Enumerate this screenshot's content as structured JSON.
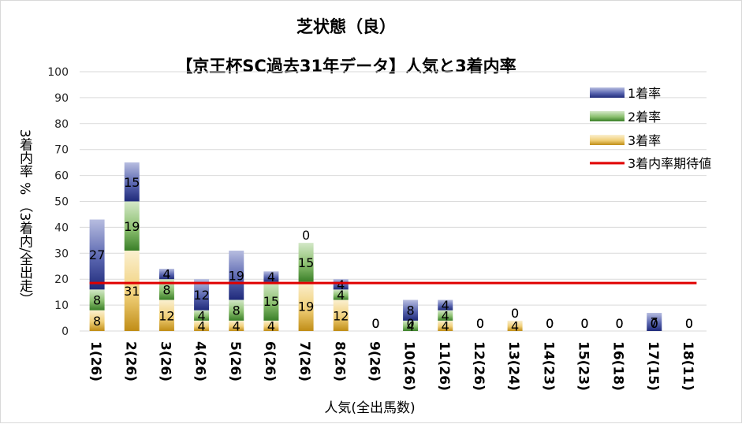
{
  "chart_data": {
    "type": "bar",
    "title": "芝状態（良）",
    "subtitle": "【京王杯SC過去31年データ】人気と3着内率",
    "xlabel": "人気(全出馬数)",
    "ylabel": "3着内率 % （3着内/全出走）",
    "ylim": [
      0,
      100
    ],
    "yticks": [
      0,
      10,
      20,
      30,
      40,
      50,
      60,
      70,
      80,
      90,
      100
    ],
    "categories": [
      "1(26)",
      "2(26)",
      "3(26)",
      "4(26)",
      "5(26)",
      "6(26)",
      "7(26)",
      "8(26)",
      "9(26)",
      "10(26)",
      "11(26)",
      "12(26)",
      "13(24)",
      "14(23)",
      "15(23)",
      "16(18)",
      "17(15)",
      "18(11)"
    ],
    "series": [
      {
        "name": "3着率",
        "values": [
          8,
          31,
          12,
          4,
          4,
          4,
          19,
          12,
          0,
          0,
          4,
          0,
          4,
          0,
          0,
          0,
          0,
          0
        ]
      },
      {
        "name": "2着率",
        "values": [
          8,
          19,
          8,
          4,
          8,
          15,
          15,
          4,
          0,
          4,
          4,
          0,
          0,
          0,
          0,
          0,
          0,
          0
        ]
      },
      {
        "name": "1着率",
        "values": [
          27,
          15,
          4,
          12,
          19,
          4,
          0,
          4,
          0,
          8,
          4,
          0,
          0,
          0,
          0,
          0,
          7,
          0
        ]
      }
    ],
    "reference_line": {
      "name": "3着内率期待値",
      "value": 18.5
    },
    "legend_position": "top-right",
    "grid": true
  },
  "colors": {
    "win": "#2e3a87",
    "second": "#3f8a2e",
    "third": "#c9961e",
    "expected": "#e00000",
    "grid": "#d9d9d9"
  }
}
